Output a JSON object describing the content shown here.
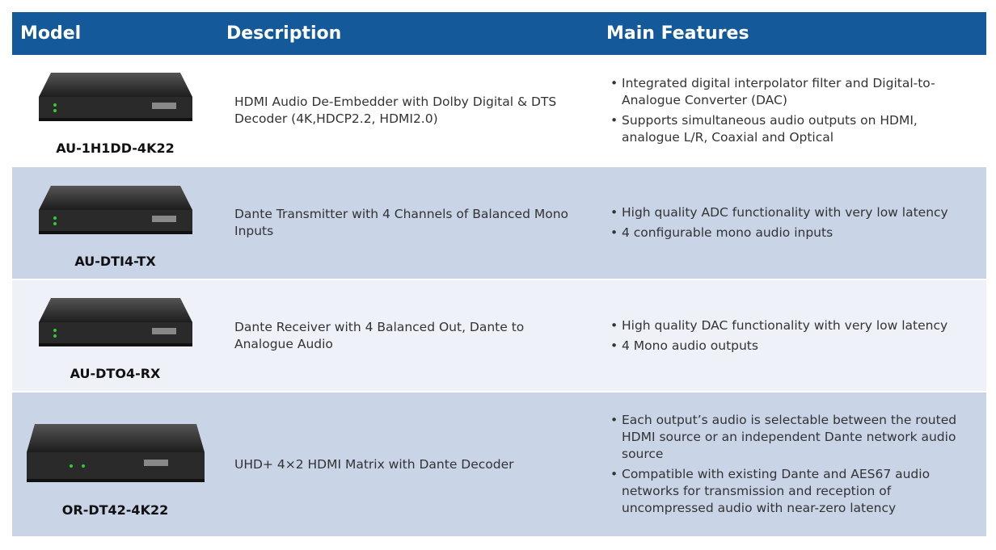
{
  "header": {
    "columns": [
      "Model",
      "Description",
      "Main Features"
    ]
  },
  "table": {
    "rows": [
      {
        "model": "AU-1H1DD-4K22",
        "description": "HDMI Audio De-Embedder with Dolby Digital & DTS Decoder (4K,HDCP2.2, HDMI2.0)",
        "features": [
          "Integrated digital interpolator filter and Digital-to-Analogue Converter (DAC)",
          "Supports simultaneous audio outputs on HDMI, analogue L/R, Coaxial and Optical"
        ]
      },
      {
        "model": "AU-DTI4-TX",
        "description": "Dante Transmitter with 4 Channels of Balanced Mono Inputs",
        "features": [
          "High quality ADC functionality with very low latency",
          "4 configurable mono audio inputs"
        ]
      },
      {
        "model": "AU-DTO4-RX",
        "description": "Dante Receiver with 4 Balanced Out, Dante to Analogue Audio",
        "features": [
          "High quality DAC functionality with very low latency",
          "4 Mono audio outputs"
        ]
      },
      {
        "model": "OR-DT42-4K22",
        "description": "UHD+ 4×2 HDMI Matrix with Dante Decoder",
        "features": [
          "Each output’s audio is selectable between the routed HDMI source or an independent Dante network audio source",
          "Compatible with existing Dante and AES67 audio networks for transmission and reception of uncompressed audio with near-zero latency"
        ]
      }
    ]
  }
}
